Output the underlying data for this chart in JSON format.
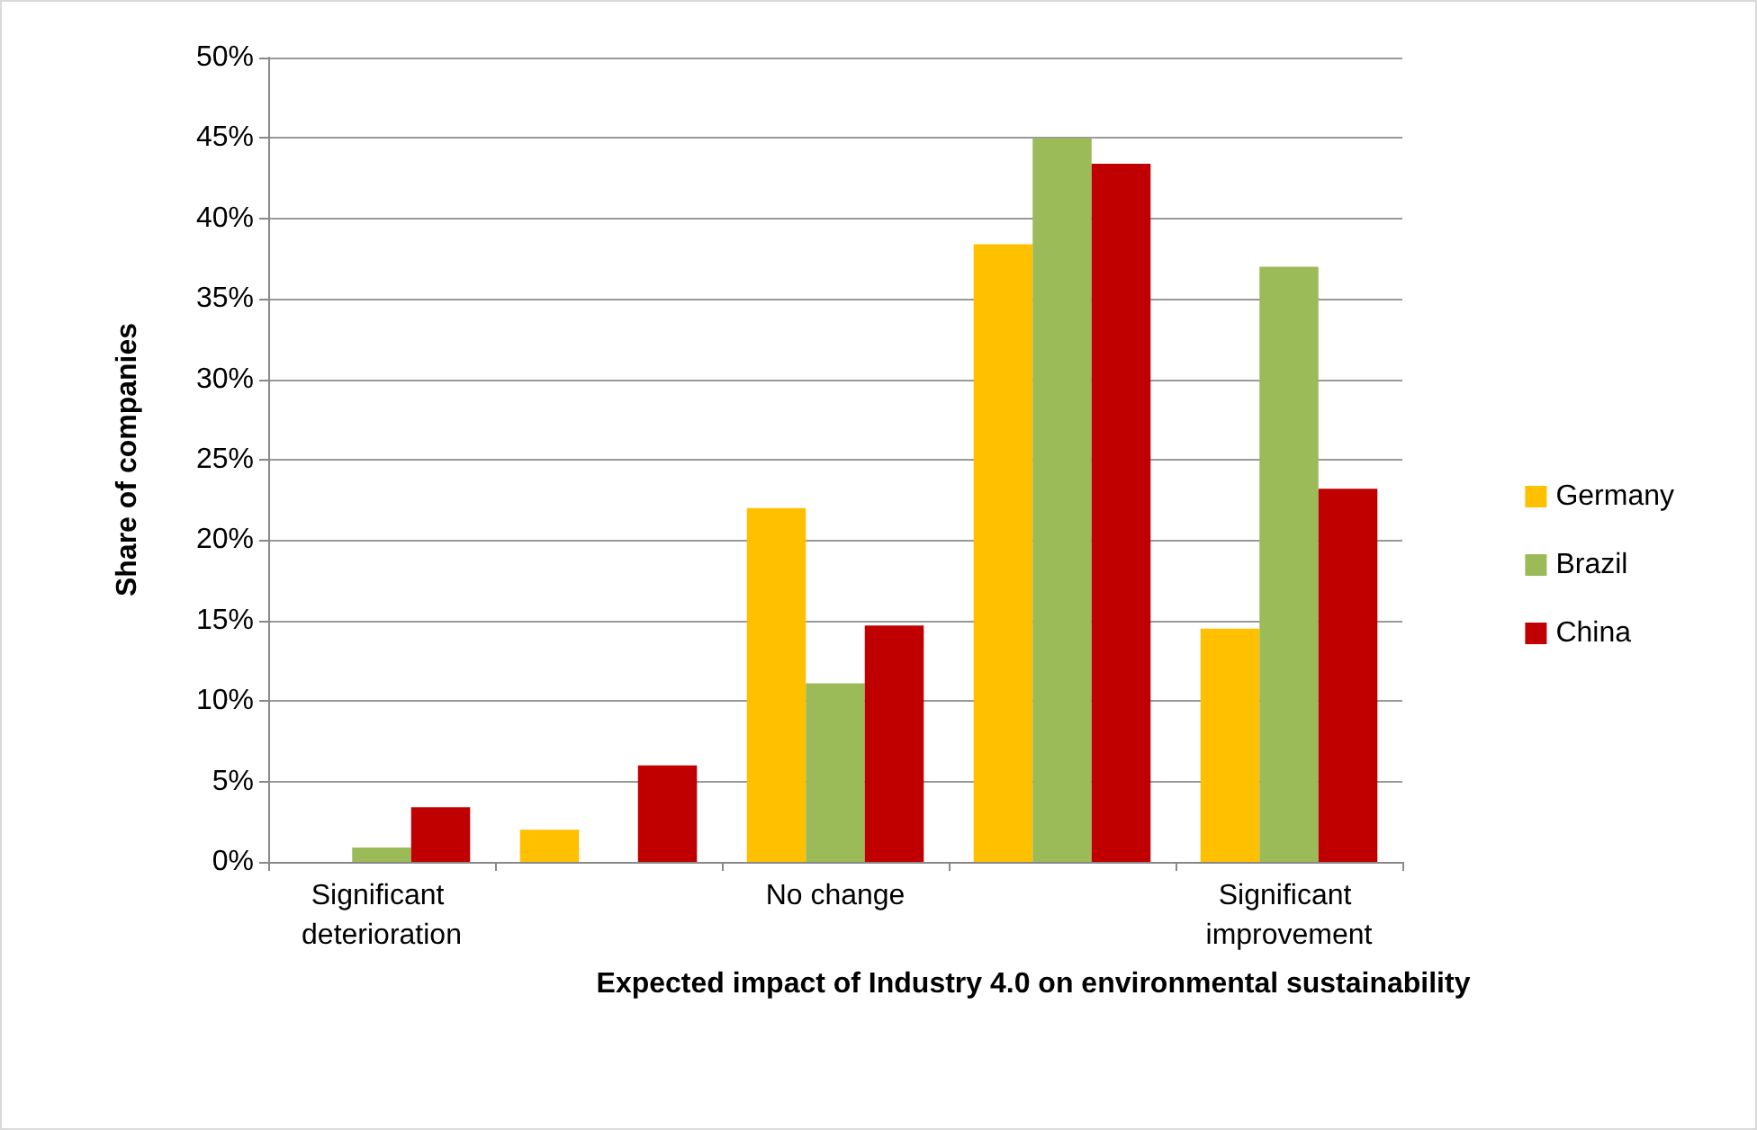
{
  "chart_data": {
    "type": "bar",
    "xlabel": "Expected impact of Industry 4.0 on environmental sustainability",
    "ylabel": "Share of companies",
    "categories": [
      "Significant deterioration",
      null,
      "No change",
      null,
      "Significant improvement"
    ],
    "series": [
      {
        "name": "Germany",
        "color": "#ffc000",
        "values": [
          0,
          2,
          22,
          38.4,
          14.5
        ]
      },
      {
        "name": "Brazil",
        "color": "#9bbb59",
        "values": [
          0.9,
          0,
          11.1,
          45,
          37
        ]
      },
      {
        "name": "China",
        "color": "#c00000",
        "values": [
          3.4,
          6,
          14.7,
          43.4,
          23.2
        ]
      }
    ],
    "ylim": [
      0,
      50
    ],
    "yticks": [
      {
        "value": 0,
        "label": "0%"
      },
      {
        "value": 5,
        "label": "5%"
      },
      {
        "value": 10,
        "label": "10%"
      },
      {
        "value": 15,
        "label": "15%"
      },
      {
        "value": 20,
        "label": "20%"
      },
      {
        "value": 25,
        "label": "25%"
      },
      {
        "value": 30,
        "label": "30%"
      },
      {
        "value": 35,
        "label": "35%"
      },
      {
        "value": 40,
        "label": "40%"
      },
      {
        "value": 45,
        "label": "45%"
      },
      {
        "value": 50,
        "label": "50%"
      }
    ],
    "grid": "y",
    "legend": "right"
  }
}
